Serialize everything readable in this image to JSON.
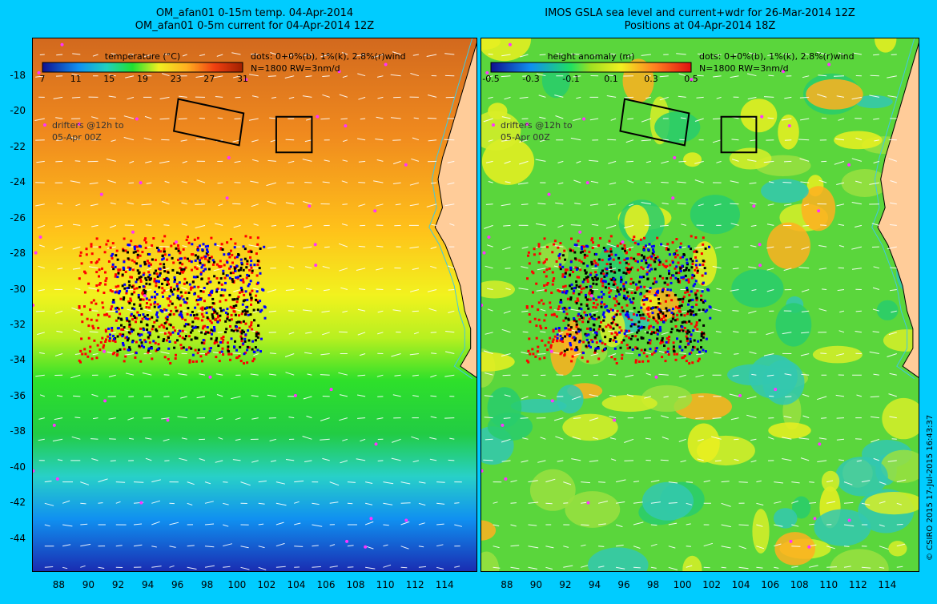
{
  "left_map": {
    "title_line1": "OM_afan01 0-15m temp. 04-Apr-2014",
    "title_line2": "OM_afan01 0-5m current for 04-Apr-2014 12Z",
    "colorbar_label": "temperature (°C)",
    "colorbar_ticks": [
      "7",
      "11",
      "15",
      "19",
      "23",
      "27",
      "31"
    ],
    "colorbar_range": [
      7,
      31
    ],
    "dots_legend_line1": "dots: 0+0%(b), 1%(k), 2.8%(r)wind",
    "dots_legend_line2": "N=1800 RW=3nm/d",
    "drifters_line1": "drifters @12h to",
    "drifters_line2": "05-Apr 00Z"
  },
  "right_map": {
    "title_line1": "IMOS GSLA sea level and current+wdr for 26-Mar-2014 12Z",
    "title_line2": "Positions at 04-Apr-2014 18Z",
    "colorbar_label": "height anomaly (m)",
    "colorbar_ticks": [
      "-0.5",
      "-0.3",
      "-0.1",
      "0.1",
      "0.3",
      "0.5"
    ],
    "colorbar_range": [
      -0.5,
      0.5
    ],
    "dots_legend_line1": "dots: 0+0%(b), 1%(k), 2.8%(r)wind",
    "dots_legend_line2": "N=1800 RW=3nm/d",
    "drifters_line1": "drifters @12h to",
    "drifters_line2": "05-Apr 00Z"
  },
  "axes": {
    "lat_ticks": [
      "-18",
      "-20",
      "-22",
      "-24",
      "-26",
      "-28",
      "-30",
      "-32",
      "-34",
      "-36",
      "-38",
      "-40",
      "-42",
      "-44"
    ],
    "lon_ticks": [
      "88",
      "90",
      "92",
      "94",
      "96",
      "98",
      "100",
      "102",
      "104",
      "106",
      "108",
      "110",
      "112",
      "114"
    ],
    "lat_range": [
      -45.9,
      -15.9
    ],
    "lon_range": [
      86.2,
      116.2
    ]
  },
  "search_boxes": [
    {
      "name": "tilted-box",
      "corners": [
        [
          96.0,
          -19.3
        ],
        [
          100.4,
          -20.1
        ],
        [
          100.1,
          -21.9
        ],
        [
          95.7,
          -21.1
        ]
      ]
    },
    {
      "name": "square-box",
      "corners": [
        [
          102.6,
          -20.3
        ],
        [
          105.0,
          -20.3
        ],
        [
          105.0,
          -22.3
        ],
        [
          102.6,
          -22.3
        ]
      ]
    }
  ],
  "colors": {
    "background": "#00ccff",
    "land": "#ffcc99",
    "coastline": "#000000",
    "drifter_magenta": "#ff33ff",
    "dots_red": "#ff0000",
    "dots_black": "#000000",
    "dots_blue": "#0000ff"
  },
  "copyright": "© CSIRO 2015   17-Jul-2015 16:43:37"
}
